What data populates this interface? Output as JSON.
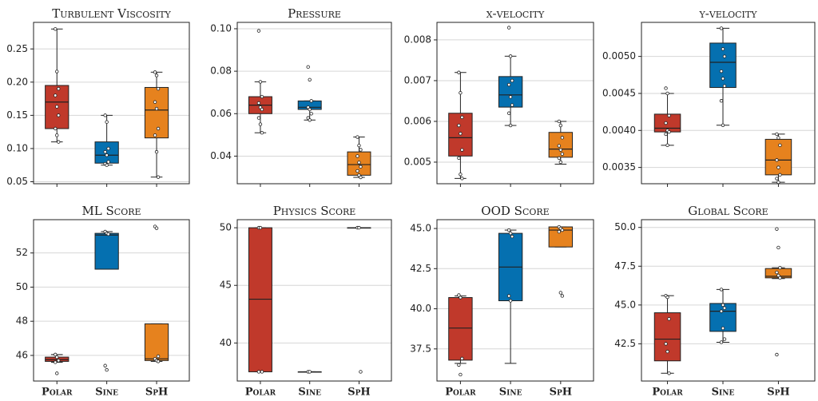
{
  "chart_data": [
    {
      "type": "box",
      "title": "Turbulent Viscosity",
      "colors": [
        "#c0392b",
        "#0570b0",
        "#e6821e"
      ],
      "ylim": [
        0.047,
        0.29
      ],
      "yticks": [
        0.05,
        {
          "value": 0.1,
          "label": "0.10"
        },
        0.15,
        {
          "value": 0.2,
          "label": "0.20"
        },
        0.25
      ],
      "grid": true,
      "boxes": [
        {
          "whislo": 0.11,
          "q1": 0.13,
          "med": 0.17,
          "q3": 0.195,
          "whishi": 0.28,
          "points": [
            0.28,
            0.216,
            0.19,
            0.18,
            0.163,
            0.15,
            0.13,
            0.12,
            0.11
          ]
        },
        {
          "whislo": 0.075,
          "q1": 0.078,
          "med": 0.09,
          "q3": 0.11,
          "whishi": 0.15,
          "points": [
            0.15,
            0.14,
            0.1,
            0.095,
            0.09,
            0.08,
            0.077,
            0.075
          ]
        },
        {
          "whislo": 0.057,
          "q1": 0.116,
          "med": 0.158,
          "q3": 0.192,
          "whishi": 0.215,
          "points": [
            0.215,
            0.21,
            0.19,
            0.17,
            0.16,
            0.13,
            0.12,
            0.095,
            0.057
          ]
        }
      ]
    },
    {
      "type": "box",
      "title": "Pressure",
      "colors": [
        "#c0392b",
        "#0570b0",
        "#e6821e"
      ],
      "ylim": [
        0.027,
        0.103
      ],
      "yticks": [
        0.04,
        0.06,
        0.08,
        {
          "value": 0.1,
          "label": "0.10"
        }
      ],
      "grid": true,
      "boxes": [
        {
          "whislo": 0.051,
          "q1": 0.06,
          "med": 0.064,
          "q3": 0.068,
          "whishi": 0.075,
          "points": [
            0.099,
            0.075,
            0.068,
            0.065,
            0.063,
            0.062,
            0.058,
            0.055,
            0.051
          ]
        },
        {
          "whislo": 0.057,
          "q1": 0.062,
          "med": 0.063,
          "q3": 0.066,
          "whishi": 0.066,
          "points": [
            0.082,
            0.076,
            0.066,
            0.063,
            0.062,
            0.06,
            0.058,
            0.057
          ]
        },
        {
          "whislo": 0.03,
          "q1": 0.031,
          "med": 0.036,
          "q3": 0.042,
          "whishi": 0.049,
          "points": [
            0.049,
            0.045,
            0.043,
            0.04,
            0.037,
            0.035,
            0.033,
            0.031,
            0.03
          ]
        }
      ]
    },
    {
      "type": "box",
      "title": "x-velocity",
      "colors": [
        "#c0392b",
        "#0570b0",
        "#e6821e"
      ],
      "ylim": [
        0.00447,
        0.00843
      ],
      "yticks": [
        0.005,
        0.006,
        0.007,
        0.008
      ],
      "grid": true,
      "boxes": [
        {
          "whislo": 0.0046,
          "q1": 0.00515,
          "med": 0.0056,
          "q3": 0.0062,
          "whishi": 0.0072,
          "points": [
            0.0072,
            0.0067,
            0.0061,
            0.0059,
            0.0057,
            0.0053,
            0.0051,
            0.0047,
            0.0046
          ]
        },
        {
          "whislo": 0.0059,
          "q1": 0.00635,
          "med": 0.00665,
          "q3": 0.0071,
          "whishi": 0.0076,
          "points": [
            0.0083,
            0.0076,
            0.007,
            0.0069,
            0.0066,
            0.0064,
            0.0062,
            0.0059
          ]
        },
        {
          "whislo": 0.00495,
          "q1": 0.00512,
          "med": 0.00532,
          "q3": 0.00573,
          "whishi": 0.006,
          "points": [
            0.006,
            0.0059,
            0.0056,
            0.0054,
            0.0053,
            0.0052,
            0.0051,
            0.005
          ]
        }
      ]
    },
    {
      "type": "box",
      "title": "y-velocity",
      "colors": [
        "#c0392b",
        "#0570b0",
        "#e6821e"
      ],
      "ylim": [
        0.00328,
        0.00546
      ],
      "yticks": [
        0.0035,
        {
          "value": 0.004,
          "label": "0.0040"
        },
        0.0045,
        {
          "value": 0.005,
          "label": "0.0050"
        }
      ],
      "grid": true,
      "boxes": [
        {
          "whislo": 0.0038,
          "q1": 0.00398,
          "med": 0.00403,
          "q3": 0.00422,
          "whishi": 0.0045,
          "points": [
            0.00457,
            0.0045,
            0.0042,
            0.0041,
            0.004,
            0.00398,
            0.00395,
            0.0038
          ]
        },
        {
          "whislo": 0.00407,
          "q1": 0.00458,
          "med": 0.00492,
          "q3": 0.00518,
          "whishi": 0.00538,
          "points": [
            0.00538,
            0.0051,
            0.005,
            0.0048,
            0.0047,
            0.0046,
            0.0044,
            0.00407
          ]
        },
        {
          "whislo": 0.0033,
          "q1": 0.0034,
          "med": 0.0036,
          "q3": 0.00388,
          "whishi": 0.00395,
          "points": [
            0.00395,
            0.0039,
            0.0038,
            0.0036,
            0.0035,
            0.0034,
            0.00335,
            0.0033
          ]
        }
      ]
    },
    {
      "type": "box",
      "title": "ML Score",
      "colors": [
        "#c0392b",
        "#0570b0",
        "#e6821e"
      ],
      "categories": [
        "Polar",
        "Sine",
        "SpH"
      ],
      "ylim": [
        44.5,
        53.95
      ],
      "yticks": [
        46,
        48,
        50,
        52
      ],
      "grid": true,
      "boxes": [
        {
          "whislo": 45.6,
          "q1": 45.65,
          "med": 45.75,
          "q3": 45.9,
          "whishi": 46.05,
          "points": [
            46.05,
            45.9,
            45.7,
            45.6,
            44.95
          ]
        },
        {
          "whislo": 51.05,
          "q1": 51.05,
          "med": 53.05,
          "q3": 53.15,
          "whishi": 53.25,
          "points": [
            53.25,
            53.15,
            53.1,
            45.4,
            45.15
          ]
        },
        {
          "whislo": 45.65,
          "q1": 45.7,
          "med": 45.8,
          "q3": 47.85,
          "whishi": 47.85,
          "points": [
            53.55,
            53.45,
            45.95,
            45.8,
            45.7,
            45.65
          ]
        }
      ]
    },
    {
      "type": "box",
      "title": "Physics Score",
      "colors": [
        "#c0392b",
        "#0570b0",
        "#e6821e"
      ],
      "categories": [
        "Polar",
        "Sine",
        "SpH"
      ],
      "ylim": [
        36.7,
        50.7
      ],
      "yticks": [
        40,
        45,
        50
      ],
      "grid": true,
      "boxes": [
        {
          "whislo": 37.5,
          "q1": 37.5,
          "med": 43.8,
          "q3": 50,
          "whishi": 50,
          "points": [
            50,
            50,
            37.5,
            37.5
          ]
        },
        {
          "whislo": 37.5,
          "q1": 37.5,
          "med": 37.5,
          "q3": 37.5,
          "whishi": 37.5,
          "points": [
            37.5,
            37.5
          ]
        },
        {
          "whislo": 50,
          "q1": 50,
          "med": 50,
          "q3": 50,
          "whishi": 50,
          "points": [
            50,
            50,
            37.5
          ]
        }
      ]
    },
    {
      "type": "box",
      "title": "OOD Score",
      "colors": [
        "#c0392b",
        "#0570b0",
        "#e6821e"
      ],
      "categories": [
        "Polar",
        "Sine",
        "SpH"
      ],
      "ylim": [
        35.5,
        45.55
      ],
      "yticks": [
        37.5,
        {
          "value": 40,
          "label": "40.0"
        },
        42.5,
        {
          "value": 45,
          "label": "45.0"
        }
      ],
      "grid": true,
      "boxes": [
        {
          "whislo": 36.6,
          "q1": 36.8,
          "med": 38.8,
          "q3": 40.7,
          "whishi": 40.8,
          "points": [
            40.85,
            40.7,
            36.9,
            36.5,
            35.9
          ]
        },
        {
          "whislo": 36.6,
          "q1": 40.5,
          "med": 42.6,
          "q3": 44.7,
          "whishi": 44.9,
          "points": [
            44.9,
            44.7,
            44.5,
            40.8,
            40.5
          ]
        },
        {
          "whislo": 43.85,
          "q1": 43.85,
          "med": 44.9,
          "q3": 45.1,
          "whishi": 45.1,
          "points": [
            45.1,
            45.0,
            44.9,
            44.8,
            41.0,
            40.8
          ]
        }
      ]
    },
    {
      "type": "box",
      "title": "Global Score",
      "colors": [
        "#c0392b",
        "#0570b0",
        "#e6821e"
      ],
      "categories": [
        "Polar",
        "Sine",
        "SpH"
      ],
      "ylim": [
        40.1,
        50.5
      ],
      "yticks": [
        42.5,
        {
          "value": 45,
          "label": "45.0"
        },
        47.5,
        {
          "value": 50,
          "label": "50.0"
        }
      ],
      "grid": true,
      "boxes": [
        {
          "whislo": 40.6,
          "q1": 41.4,
          "med": 42.8,
          "q3": 44.5,
          "whishi": 45.6,
          "points": [
            45.6,
            45.5,
            44.1,
            42.5,
            42.0,
            40.6
          ]
        },
        {
          "whislo": 42.6,
          "q1": 43.3,
          "med": 44.6,
          "q3": 45.1,
          "whishi": 46.0,
          "points": [
            46.0,
            45.0,
            44.8,
            44.6,
            43.5,
            42.8,
            42.6
          ]
        },
        {
          "whislo": 46.7,
          "q1": 46.75,
          "med": 46.85,
          "q3": 47.35,
          "whishi": 47.4,
          "points": [
            49.9,
            48.7,
            47.4,
            47.1,
            46.9,
            46.75,
            41.8
          ]
        }
      ]
    }
  ]
}
